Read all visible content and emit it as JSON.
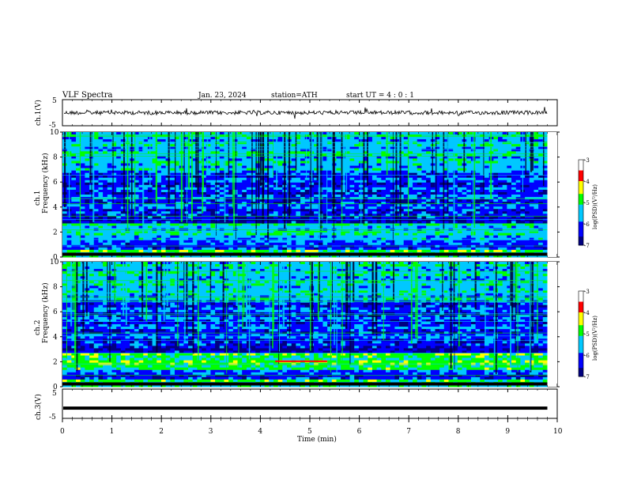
{
  "header": {
    "title": "VLF  Spectra",
    "date": "Jan. 23, 2024",
    "station": "station=ATH",
    "start": "start  UT  =   4  : 0   : 1"
  },
  "chart_data": [
    {
      "type": "line",
      "name": "ch1-waveform",
      "ylabel": "ch.1(V)",
      "ylim": [
        -5,
        5
      ],
      "yticks": [
        "5",
        "-5"
      ],
      "xlim": [
        0,
        10
      ],
      "note_level_v": 0
    },
    {
      "type": "heatmap",
      "name": "ch1-spectrogram",
      "ylabel_top": "ch.1",
      "ylabel": "Frequency  (kHz)",
      "ylim": [
        0,
        10
      ],
      "yticks": [
        "0",
        "2",
        "4",
        "6",
        "8",
        "10"
      ],
      "xlim": [
        0,
        9.8
      ],
      "colorbar": {
        "label": "log(PSD)(V²/Hz)",
        "ticks": [
          "-3",
          "-4",
          "-5",
          "-6",
          "-7"
        ],
        "range": [
          -7,
          -3
        ]
      }
    },
    {
      "type": "heatmap",
      "name": "ch2-spectrogram",
      "ylabel_top": "ch.2",
      "ylabel": "Frequency  (kHz)",
      "ylim": [
        0,
        10
      ],
      "yticks": [
        "0",
        "2",
        "4",
        "6",
        "8",
        "10"
      ],
      "xlim": [
        0,
        9.8
      ],
      "colorbar": {
        "label": "log(PSD)(V²/Hz)",
        "ticks": [
          "-3",
          "-4",
          "-5",
          "-6",
          "-7"
        ],
        "range": [
          -7,
          -3
        ]
      }
    },
    {
      "type": "line",
      "name": "ch3-waveform",
      "ylabel": "ch.3(V)",
      "ylim": [
        -5,
        5
      ],
      "yticks": [
        "5",
        "-5"
      ],
      "xlim": [
        0,
        10
      ],
      "level_v": -1.5
    }
  ],
  "x_axis": {
    "label": "Time  (min)",
    "ticks": [
      "0",
      "1",
      "2",
      "3",
      "4",
      "5",
      "6",
      "7",
      "8",
      "9",
      "10"
    ],
    "range": [
      0,
      10
    ]
  },
  "colors": {
    "deep": "#000080",
    "blue": "#0000ff",
    "cyan": "#00c8ff",
    "green": "#00ff00",
    "yellow": "#ffff00",
    "red": "#ff0000"
  }
}
